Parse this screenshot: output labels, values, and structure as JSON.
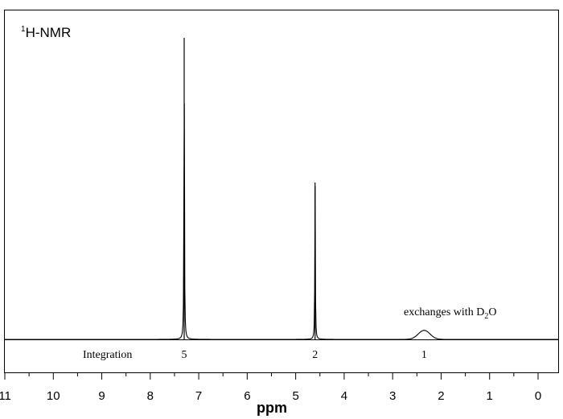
{
  "chart_data": {
    "type": "line",
    "title_sup": "1",
    "title_main": "H-NMR",
    "xlabel": "ppm",
    "xlim": [
      11,
      0
    ],
    "x_reversed": true,
    "x_ticks": [
      "11",
      "10",
      "9",
      "8",
      "7",
      "6",
      "5",
      "4",
      "3",
      "2",
      "1",
      "0"
    ],
    "integration_label": "Integration",
    "peaks": [
      {
        "shift": 7.3,
        "relative_height": 1.0,
        "integration": "5",
        "shape": "sharp"
      },
      {
        "shift": 4.6,
        "relative_height": 0.52,
        "integration": "2",
        "shape": "sharp"
      },
      {
        "shift": 2.35,
        "relative_height": 0.03,
        "integration": "1",
        "shape": "broad"
      }
    ],
    "annotation": {
      "text_before": "exchanges with D",
      "subscript": "2",
      "text_after": "O"
    },
    "grid": false,
    "legend": "none"
  }
}
